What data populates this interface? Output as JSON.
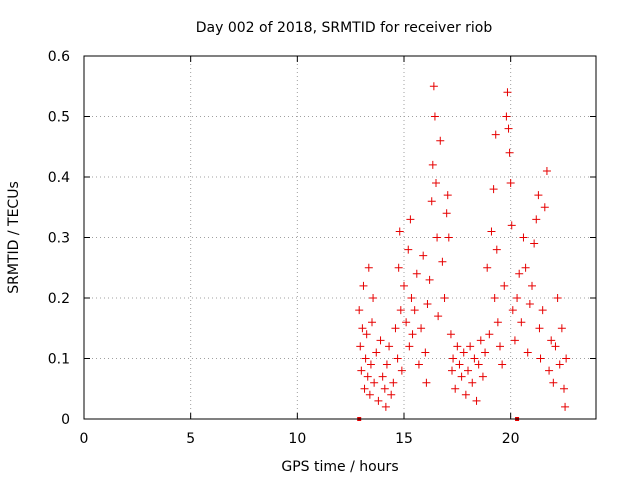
{
  "chart_data": {
    "type": "scatter",
    "title": "Day 002 of 2018, SRMTID for receiver riob",
    "xlabel": "GPS time / hours",
    "ylabel": "SRMTID / TECUs",
    "xlim": [
      0,
      24
    ],
    "ylim": [
      0,
      0.6
    ],
    "x_ticks": [
      0,
      5,
      10,
      15,
      20
    ],
    "x_tick_labels": [
      "0",
      "5",
      "10",
      "15",
      "20"
    ],
    "y_ticks": [
      0,
      0.1,
      0.2,
      0.3,
      0.4,
      0.5,
      0.6
    ],
    "y_tick_labels": [
      "0",
      "0.1",
      "0.2",
      "0.3",
      "0.4",
      "0.5",
      "0.6"
    ],
    "grid": true,
    "marker": "plus",
    "marker_color": "#e60000",
    "series": [
      {
        "name": "SRMTID",
        "points": [
          [
            12.9,
            0.18
          ],
          [
            12.95,
            0.12
          ],
          [
            13.0,
            0.08
          ],
          [
            13.05,
            0.15
          ],
          [
            13.1,
            0.22
          ],
          [
            13.15,
            0.05
          ],
          [
            13.2,
            0.1
          ],
          [
            13.25,
            0.14
          ],
          [
            13.3,
            0.07
          ],
          [
            13.35,
            0.25
          ],
          [
            13.4,
            0.04
          ],
          [
            13.45,
            0.09
          ],
          [
            13.5,
            0.16
          ],
          [
            13.55,
            0.2
          ],
          [
            13.6,
            0.06
          ],
          [
            13.7,
            0.11
          ],
          [
            13.8,
            0.03
          ],
          [
            13.9,
            0.13
          ],
          [
            14.0,
            0.07
          ],
          [
            14.1,
            0.05
          ],
          [
            14.15,
            0.02
          ],
          [
            14.2,
            0.09
          ],
          [
            14.3,
            0.12
          ],
          [
            14.4,
            0.04
          ],
          [
            14.5,
            0.06
          ],
          [
            14.6,
            0.15
          ],
          [
            14.7,
            0.1
          ],
          [
            14.75,
            0.25
          ],
          [
            14.8,
            0.31
          ],
          [
            14.85,
            0.18
          ],
          [
            14.9,
            0.08
          ],
          [
            15.0,
            0.22
          ],
          [
            15.1,
            0.16
          ],
          [
            15.2,
            0.28
          ],
          [
            15.25,
            0.12
          ],
          [
            15.3,
            0.33
          ],
          [
            15.35,
            0.2
          ],
          [
            15.4,
            0.14
          ],
          [
            15.5,
            0.18
          ],
          [
            15.6,
            0.24
          ],
          [
            15.7,
            0.09
          ],
          [
            15.8,
            0.15
          ],
          [
            15.9,
            0.27
          ],
          [
            16.0,
            0.11
          ],
          [
            16.05,
            0.06
          ],
          [
            16.1,
            0.19
          ],
          [
            16.2,
            0.23
          ],
          [
            16.3,
            0.36
          ],
          [
            16.35,
            0.42
          ],
          [
            16.4,
            0.55
          ],
          [
            16.45,
            0.5
          ],
          [
            16.5,
            0.39
          ],
          [
            16.55,
            0.3
          ],
          [
            16.6,
            0.17
          ],
          [
            16.7,
            0.46
          ],
          [
            16.8,
            0.26
          ],
          [
            16.9,
            0.2
          ],
          [
            17.0,
            0.34
          ],
          [
            17.05,
            0.37
          ],
          [
            17.1,
            0.3
          ],
          [
            17.2,
            0.14
          ],
          [
            17.25,
            0.08
          ],
          [
            17.3,
            0.1
          ],
          [
            17.4,
            0.05
          ],
          [
            17.5,
            0.12
          ],
          [
            17.6,
            0.09
          ],
          [
            17.7,
            0.07
          ],
          [
            17.8,
            0.11
          ],
          [
            17.9,
            0.04
          ],
          [
            18.0,
            0.08
          ],
          [
            18.1,
            0.12
          ],
          [
            18.2,
            0.06
          ],
          [
            18.3,
            0.1
          ],
          [
            18.4,
            0.03
          ],
          [
            18.5,
            0.09
          ],
          [
            18.6,
            0.13
          ],
          [
            18.7,
            0.07
          ],
          [
            18.8,
            0.11
          ],
          [
            18.9,
            0.25
          ],
          [
            19.0,
            0.14
          ],
          [
            19.1,
            0.31
          ],
          [
            19.2,
            0.38
          ],
          [
            19.25,
            0.2
          ],
          [
            19.3,
            0.47
          ],
          [
            19.35,
            0.28
          ],
          [
            19.4,
            0.16
          ],
          [
            19.5,
            0.12
          ],
          [
            19.6,
            0.09
          ],
          [
            19.7,
            0.22
          ],
          [
            19.8,
            0.5
          ],
          [
            19.85,
            0.54
          ],
          [
            19.9,
            0.48
          ],
          [
            19.95,
            0.44
          ],
          [
            20.0,
            0.39
          ],
          [
            20.05,
            0.32
          ],
          [
            20.1,
            0.18
          ],
          [
            20.2,
            0.13
          ],
          [
            20.3,
            0.2
          ],
          [
            20.4,
            0.24
          ],
          [
            20.5,
            0.16
          ],
          [
            20.6,
            0.3
          ],
          [
            20.7,
            0.25
          ],
          [
            20.8,
            0.11
          ],
          [
            20.9,
            0.19
          ],
          [
            21.0,
            0.22
          ],
          [
            21.1,
            0.29
          ],
          [
            21.2,
            0.33
          ],
          [
            21.3,
            0.37
          ],
          [
            21.35,
            0.15
          ],
          [
            21.4,
            0.1
          ],
          [
            21.5,
            0.18
          ],
          [
            21.6,
            0.35
          ],
          [
            21.7,
            0.41
          ],
          [
            21.8,
            0.08
          ],
          [
            21.9,
            0.13
          ],
          [
            22.0,
            0.06
          ],
          [
            22.1,
            0.12
          ],
          [
            22.2,
            0.2
          ],
          [
            22.3,
            0.09
          ],
          [
            22.4,
            0.15
          ],
          [
            22.5,
            0.05
          ],
          [
            22.55,
            0.02
          ],
          [
            22.6,
            0.1
          ]
        ]
      }
    ],
    "baseline_markers_x": [
      12.9,
      20.3
    ]
  }
}
